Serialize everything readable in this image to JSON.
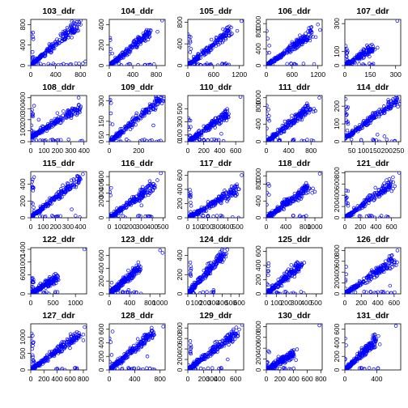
{
  "figure": {
    "background": "#ffffff",
    "point_color": "#0000ff",
    "axis_color": "#000000",
    "layout": "5x5 grid of small scatter plots"
  },
  "chart_data": [
    {
      "type": "scatter",
      "title": "103_ddr",
      "xticks": [
        0,
        400,
        800
      ],
      "yticks": [
        0,
        400,
        800
      ],
      "xlim": [
        0,
        900
      ],
      "ylim": [
        0,
        900
      ],
      "trend": {
        "start": [
          0,
          0
        ],
        "end": [
          760,
          800
        ]
      },
      "outliers": [
        [
          880,
          80
        ],
        [
          720,
          820
        ],
        [
          840,
          40
        ]
      ],
      "n_points": 180
    },
    {
      "type": "scatter",
      "title": "104_ddr",
      "xticks": [
        0,
        400,
        800
      ],
      "yticks": [
        0,
        200,
        400
      ],
      "xlim": [
        0,
        950
      ],
      "ylim": [
        0,
        450
      ],
      "trend": {
        "start": [
          0,
          0
        ],
        "end": [
          700,
          320
        ]
      },
      "outliers": [
        [
          900,
          440
        ],
        [
          820,
          330
        ]
      ],
      "n_points": 180
    },
    {
      "type": "scatter",
      "title": "105_ddr",
      "xticks": [
        0,
        600,
        1200
      ],
      "yticks": [
        0,
        400,
        800
      ],
      "xlim": [
        0,
        1300
      ],
      "ylim": [
        0,
        850
      ],
      "trend": {
        "start": [
          0,
          0
        ],
        "end": [
          1000,
          650
        ]
      },
      "outliers": [
        [
          1250,
          820
        ],
        [
          1150,
          640
        ]
      ],
      "n_points": 180
    },
    {
      "type": "scatter",
      "title": "106_ddr",
      "xticks": [
        0,
        600,
        1200
      ],
      "yticks": [
        0,
        400,
        800,
        1000
      ],
      "xlim": [
        0,
        1300
      ],
      "ylim": [
        0,
        1100
      ],
      "trend": {
        "start": [
          0,
          0
        ],
        "end": [
          1100,
          800
        ]
      },
      "outliers": [
        [
          1200,
          980
        ],
        [
          1250,
          850
        ]
      ],
      "n_points": 180
    },
    {
      "type": "scatter",
      "title": "107_ddr",
      "xticks": [
        0,
        150,
        300
      ],
      "yticks": [
        0,
        100,
        300
      ],
      "xlim": [
        0,
        330
      ],
      "ylim": [
        0,
        330
      ],
      "trend": {
        "start": [
          0,
          0
        ],
        "end": [
          170,
          130
        ]
      },
      "outliers": [
        [
          310,
          320
        ],
        [
          160,
          150
        ]
      ],
      "n_points": 140
    },
    {
      "type": "scatter",
      "title": "108_ddr",
      "xticks": [
        0,
        100,
        200,
        300,
        400
      ],
      "yticks": [
        0,
        100,
        200,
        300,
        400
      ],
      "xlim": [
        0,
        420
      ],
      "ylim": [
        0,
        420
      ],
      "trend": {
        "start": [
          0,
          40
        ],
        "end": [
          380,
          320
        ]
      },
      "outliers": [
        [
          360,
          400
        ],
        [
          200,
          260
        ],
        [
          60,
          200
        ]
      ],
      "n_points": 180
    },
    {
      "type": "scatter",
      "title": "109_ddr",
      "xticks": [
        0,
        200
      ],
      "yticks": [
        0,
        50,
        150,
        300
      ],
      "xlim": [
        0,
        380
      ],
      "ylim": [
        0,
        340
      ],
      "trend": {
        "start": [
          0,
          0
        ],
        "end": [
          360,
          320
        ]
      },
      "outliers": [
        [
          370,
          335
        ],
        [
          300,
          120
        ]
      ],
      "n_points": 180
    },
    {
      "type": "scatter",
      "title": "110_ddr",
      "xticks": [
        0,
        200,
        400,
        600
      ],
      "yticks": [
        0,
        100,
        300,
        500
      ],
      "xlim": [
        0,
        700
      ],
      "ylim": [
        0,
        700
      ],
      "trend": {
        "start": [
          0,
          0
        ],
        "end": [
          500,
          420
        ]
      },
      "outliers": [
        [
          660,
          680
        ],
        [
          420,
          120
        ]
      ],
      "n_points": 180
    },
    {
      "type": "scatter",
      "title": "111_ddr",
      "xticks": [
        0,
        400,
        800
      ],
      "yticks": [
        0,
        400,
        800,
        1000
      ],
      "xlim": [
        0,
        1000
      ],
      "ylim": [
        0,
        1050
      ],
      "trend": {
        "start": [
          0,
          0
        ],
        "end": [
          800,
          800
        ]
      },
      "outliers": [
        [
          950,
          1000
        ],
        [
          880,
          700
        ]
      ],
      "n_points": 180
    },
    {
      "type": "scatter",
      "title": "114_ddr",
      "xticks": [
        50,
        100,
        150,
        200,
        250
      ],
      "yticks": [
        0,
        100,
        200
      ],
      "xlim": [
        20,
        260
      ],
      "ylim": [
        0,
        260
      ],
      "trend": {
        "start": [
          20,
          20
        ],
        "end": [
          250,
          240
        ]
      },
      "outliers": [
        [
          190,
          30
        ],
        [
          160,
          40
        ]
      ],
      "n_points": 180
    },
    {
      "type": "scatter",
      "title": "115_ddr",
      "xticks": [
        0,
        100,
        200,
        300,
        400
      ],
      "yticks": [
        0,
        200,
        400
      ],
      "xlim": [
        0,
        450
      ],
      "ylim": [
        0,
        550
      ],
      "trend": {
        "start": [
          0,
          0
        ],
        "end": [
          400,
          480
        ]
      },
      "outliers": [
        [
          420,
          520
        ],
        [
          330,
          100
        ]
      ],
      "n_points": 180
    },
    {
      "type": "scatter",
      "title": "116_ddr",
      "xticks": [
        0,
        100,
        200,
        300,
        400,
        500
      ],
      "yticks": [
        0,
        200,
        300,
        400,
        500
      ],
      "xlim": [
        0,
        520
      ],
      "ylim": [
        0,
        560
      ],
      "trend": {
        "start": [
          0,
          0
        ],
        "end": [
          420,
          400
        ]
      },
      "outliers": [
        [
          480,
          540
        ],
        [
          300,
          150
        ]
      ],
      "n_points": 180
    },
    {
      "type": "scatter",
      "title": "117_ddr",
      "xticks": [
        0,
        100,
        200,
        300,
        400,
        500
      ],
      "yticks": [
        0,
        200,
        400,
        600
      ],
      "xlim": [
        0,
        560
      ],
      "ylim": [
        0,
        650
      ],
      "trend": {
        "start": [
          0,
          0
        ],
        "end": [
          500,
          400
        ]
      },
      "outliers": [
        [
          540,
          600
        ],
        [
          480,
          440
        ]
      ],
      "n_points": 180
    },
    {
      "type": "scatter",
      "title": "118_ddr",
      "xticks": [
        0,
        400,
        800,
        1000
      ],
      "yticks": [
        0,
        400,
        800,
        1000
      ],
      "xlim": [
        0,
        1150
      ],
      "ylim": [
        0,
        1100
      ],
      "trend": {
        "start": [
          0,
          0
        ],
        "end": [
          900,
          750
        ]
      },
      "outliers": [
        [
          1100,
          1050
        ],
        [
          1000,
          620
        ]
      ],
      "n_points": 180
    },
    {
      "type": "scatter",
      "title": "121_ddr",
      "xticks": [
        0,
        200,
        400,
        600
      ],
      "yticks": [
        0,
        200,
        400,
        600,
        800
      ],
      "xlim": [
        0,
        720
      ],
      "ylim": [
        0,
        820
      ],
      "trend": {
        "start": [
          0,
          0
        ],
        "end": [
          600,
          600
        ]
      },
      "outliers": [
        [
          700,
          800
        ],
        [
          620,
          720
        ]
      ],
      "n_points": 180
    },
    {
      "type": "scatter",
      "title": "122_ddr",
      "xticks": [
        0,
        500,
        1000
      ],
      "yticks": [
        0,
        600,
        1000,
        1400
      ],
      "xlim": [
        0,
        1250
      ],
      "ylim": [
        0,
        1450
      ],
      "trend": {
        "start": [
          0,
          0
        ],
        "end": [
          600,
          550
        ]
      },
      "outliers": [
        [
          1200,
          1400
        ],
        [
          550,
          480
        ]
      ],
      "n_points": 160
    },
    {
      "type": "scatter",
      "title": "123_ddr",
      "xticks": [
        0,
        400,
        800,
        1000
      ],
      "yticks": [
        0,
        200,
        400,
        600
      ],
      "xlim": [
        0,
        1100
      ],
      "ylim": [
        0,
        720
      ],
      "trend": {
        "start": [
          0,
          0
        ],
        "end": [
          600,
          420
        ]
      },
      "outliers": [
        [
          1000,
          680
        ],
        [
          1050,
          640
        ],
        [
          380,
          60
        ]
      ],
      "n_points": 180
    },
    {
      "type": "scatter",
      "title": "124_ddr",
      "xticks": [
        0,
        100,
        200,
        300,
        400,
        500,
        600
      ],
      "yticks": [
        0,
        200,
        400
      ],
      "xlim": [
        0,
        650
      ],
      "ylim": [
        0,
        480
      ],
      "trend": {
        "start": [
          0,
          0
        ],
        "end": [
          420,
          420
        ]
      },
      "outliers": [
        [
          460,
          460
        ],
        [
          300,
          40
        ]
      ],
      "n_points": 180
    },
    {
      "type": "scatter",
      "title": "125_ddr",
      "xticks": [
        0,
        100,
        200,
        300,
        400,
        500
      ],
      "yticks": [
        0,
        200,
        400,
        600
      ],
      "xlim": [
        0,
        560
      ],
      "ylim": [
        0,
        650
      ],
      "trend": {
        "start": [
          0,
          0
        ],
        "end": [
          350,
          420
        ]
      },
      "outliers": [
        [
          380,
          440
        ],
        [
          120,
          200
        ]
      ],
      "n_points": 180
    },
    {
      "type": "scatter",
      "title": "126_ddr",
      "xticks": [
        0,
        200,
        400,
        600
      ],
      "yticks": [
        0,
        200,
        400,
        600,
        800
      ],
      "xlim": [
        0,
        680
      ],
      "ylim": [
        0,
        850
      ],
      "trend": {
        "start": [
          0,
          0
        ],
        "end": [
          600,
          620
        ]
      },
      "outliers": [
        [
          640,
          800
        ],
        [
          550,
          150
        ]
      ],
      "n_points": 180
    },
    {
      "type": "scatter",
      "title": "127_ddr",
      "xticks": [
        0,
        200,
        400,
        600,
        800
      ],
      "yticks": [
        0,
        500,
        1000
      ],
      "xlim": [
        0,
        850
      ],
      "ylim": [
        0,
        1400
      ],
      "trend": {
        "start": [
          0,
          0
        ],
        "end": [
          750,
          1100
        ]
      },
      "outliers": [
        [
          820,
          1300
        ],
        [
          800,
          900
        ]
      ],
      "n_points": 200
    },
    {
      "type": "scatter",
      "title": "128_ddr",
      "xticks": [
        0,
        400,
        800
      ],
      "yticks": [
        0,
        200,
        400,
        600
      ],
      "xlim": [
        0,
        880
      ],
      "ylim": [
        0,
        680
      ],
      "trend": {
        "start": [
          0,
          0
        ],
        "end": [
          700,
          560
        ]
      },
      "outliers": [
        [
          850,
          640
        ],
        [
          600,
          200
        ]
      ],
      "n_points": 200
    },
    {
      "type": "scatter",
      "title": "129_ddr",
      "xticks": [
        0,
        200,
        300,
        400,
        600
      ],
      "yticks": [
        0,
        200,
        400,
        600,
        800
      ],
      "xlim": [
        0,
        700
      ],
      "ylim": [
        0,
        880
      ],
      "trend": {
        "start": [
          0,
          0
        ],
        "end": [
          600,
          700
        ]
      },
      "outliers": [
        [
          680,
          860
        ],
        [
          500,
          200
        ]
      ],
      "n_points": 200
    },
    {
      "type": "scatter",
      "title": "130_ddr",
      "xticks": [
        0,
        200,
        400,
        600,
        800
      ],
      "yticks": [
        0,
        200,
        400,
        600,
        800
      ],
      "xlim": [
        0,
        820
      ],
      "ylim": [
        0,
        850
      ],
      "trend": {
        "start": [
          0,
          0
        ],
        "end": [
          400,
          300
        ]
      },
      "outliers": [
        [
          780,
          820
        ],
        [
          450,
          380
        ]
      ],
      "n_points": 180
    },
    {
      "type": "scatter",
      "title": "131_ddr",
      "xticks": [
        0,
        400
      ],
      "yticks": [
        0,
        200,
        400,
        600
      ],
      "xlim": [
        0,
        700
      ],
      "ylim": [
        0,
        680
      ],
      "trend": {
        "start": [
          0,
          0
        ],
        "end": [
          400,
          450
        ]
      },
      "outliers": [
        [
          640,
          650
        ],
        [
          420,
          500
        ]
      ],
      "n_points": 180
    }
  ]
}
